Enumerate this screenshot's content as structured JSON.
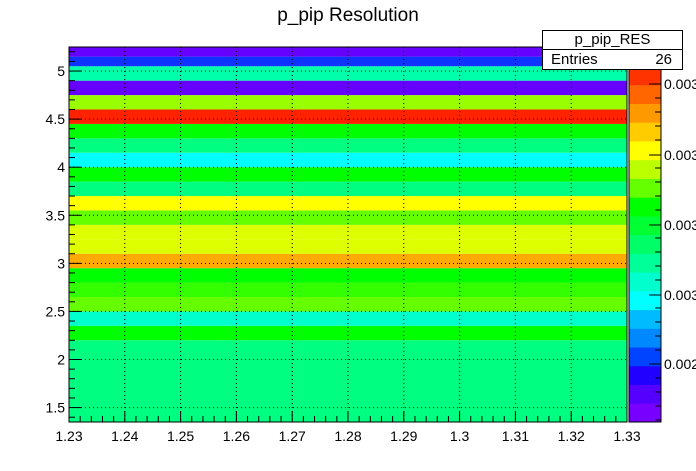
{
  "chart_data": {
    "type": "heatmap",
    "title": "p_pip Resolution",
    "xlabel": "",
    "ylabel": "",
    "xlim": [
      1.23,
      1.33
    ],
    "ylim": [
      1.35,
      5.25
    ],
    "x_ticks": [
      "1.23",
      "1.24",
      "1.25",
      "1.26",
      "1.27",
      "1.28",
      "1.29",
      "1.3",
      "1.31",
      "1.32",
      "1.33"
    ],
    "y_ticks": [
      "1.5",
      "2",
      "2.5",
      "3",
      "3.5",
      "4",
      "4.5",
      "5"
    ],
    "grid": true,
    "colorbar_labels": [
      "0.003",
      "0.003",
      "0.003",
      "0.003",
      "0.002"
    ],
    "bands": [
      {
        "y0": 1.35,
        "y1": 2.2,
        "color": "#00ff80"
      },
      {
        "y0": 2.2,
        "y1": 2.35,
        "color": "#00ff00"
      },
      {
        "y0": 2.35,
        "y1": 2.5,
        "color": "#00ffcc"
      },
      {
        "y0": 2.5,
        "y1": 2.65,
        "color": "#66ff00"
      },
      {
        "y0": 2.65,
        "y1": 2.8,
        "color": "#33ff00"
      },
      {
        "y0": 2.8,
        "y1": 2.95,
        "color": "#00ff00"
      },
      {
        "y0": 2.95,
        "y1": 3.1,
        "color": "#ffaa00"
      },
      {
        "y0": 3.1,
        "y1": 3.25,
        "color": "#ddff00"
      },
      {
        "y0": 3.25,
        "y1": 3.4,
        "color": "#ddff00"
      },
      {
        "y0": 3.4,
        "y1": 3.55,
        "color": "#66ff00"
      },
      {
        "y0": 3.55,
        "y1": 3.7,
        "color": "#ffff00"
      },
      {
        "y0": 3.7,
        "y1": 3.85,
        "color": "#00ff80"
      },
      {
        "y0": 3.85,
        "y1": 4.0,
        "color": "#00ff00"
      },
      {
        "y0": 4.0,
        "y1": 4.15,
        "color": "#00ffff"
      },
      {
        "y0": 4.15,
        "y1": 4.3,
        "color": "#00ff80"
      },
      {
        "y0": 4.3,
        "y1": 4.45,
        "color": "#00ff00"
      },
      {
        "y0": 4.45,
        "y1": 4.6,
        "color": "#ff2200"
      },
      {
        "y0": 4.6,
        "y1": 4.75,
        "color": "#99ff00"
      },
      {
        "y0": 4.75,
        "y1": 4.9,
        "color": "#6600ff"
      },
      {
        "y0": 4.9,
        "y1": 5.05,
        "color": "#00ffaa"
      },
      {
        "y0": 5.05,
        "y1": 5.15,
        "color": "#1133ff"
      },
      {
        "y0": 5.15,
        "y1": 5.25,
        "color": "#6600ff"
      }
    ],
    "palette": [
      "#7700ff",
      "#5500ff",
      "#2200ff",
      "#0044ff",
      "#0088ff",
      "#00bbff",
      "#00ffff",
      "#00ffcc",
      "#00ff99",
      "#00ff66",
      "#00ff33",
      "#00ff00",
      "#66ff00",
      "#bbff00",
      "#ffff00",
      "#ffcc00",
      "#ff9900",
      "#ff6600",
      "#ff3300"
    ]
  },
  "statbox": {
    "name": "p_pip_RES",
    "entries_label": "Entries",
    "entries_value": "26"
  }
}
